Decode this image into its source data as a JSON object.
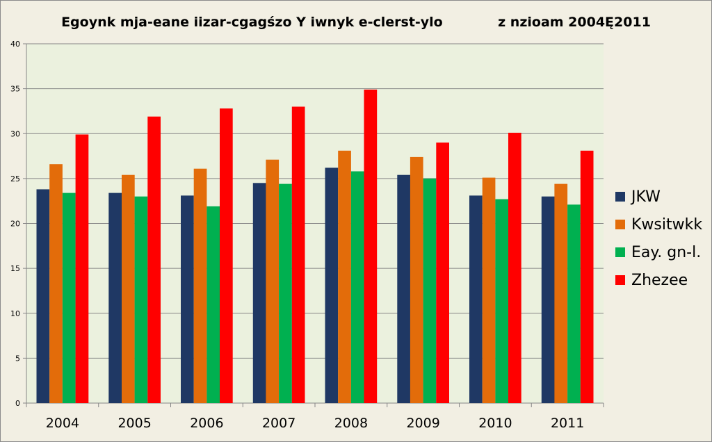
{
  "chart_data": {
    "type": "bar",
    "title": "Egoynk mja-eane iizar-cgagśzo Y iwnyk e-clerst-ylo            z nzioam 2004Ę2011",
    "xlabel": "",
    "ylabel": "",
    "ylim": [
      0,
      40
    ],
    "yticks": [
      "0",
      "5",
      "10",
      "15",
      "20",
      "25",
      "30",
      "35",
      "40"
    ],
    "grid": true,
    "legend_position": "right",
    "categories": [
      "2004",
      "2005",
      "2006",
      "2007",
      "2008",
      "2009",
      "2010",
      "2011"
    ],
    "series": [
      {
        "name": "JKW",
        "color": "#1f3864",
        "values": [
          23.8,
          23.4,
          23.1,
          24.5,
          26.2,
          25.4,
          23.1,
          23.0
        ]
      },
      {
        "name": "Kwsitwkk",
        "color": "#e36c0a",
        "values": [
          26.6,
          25.4,
          26.1,
          27.1,
          28.1,
          27.4,
          25.1,
          24.4
        ]
      },
      {
        "name": "Eay. gn-l.",
        "color": "#00b050",
        "values": [
          23.4,
          23.0,
          21.9,
          24.4,
          25.8,
          25.0,
          22.7,
          22.1
        ]
      },
      {
        "name": "Zhezee",
        "color": "#ff0000",
        "values": [
          29.9,
          31.9,
          32.8,
          33.0,
          34.9,
          29.0,
          30.1,
          28.1
        ]
      }
    ]
  }
}
